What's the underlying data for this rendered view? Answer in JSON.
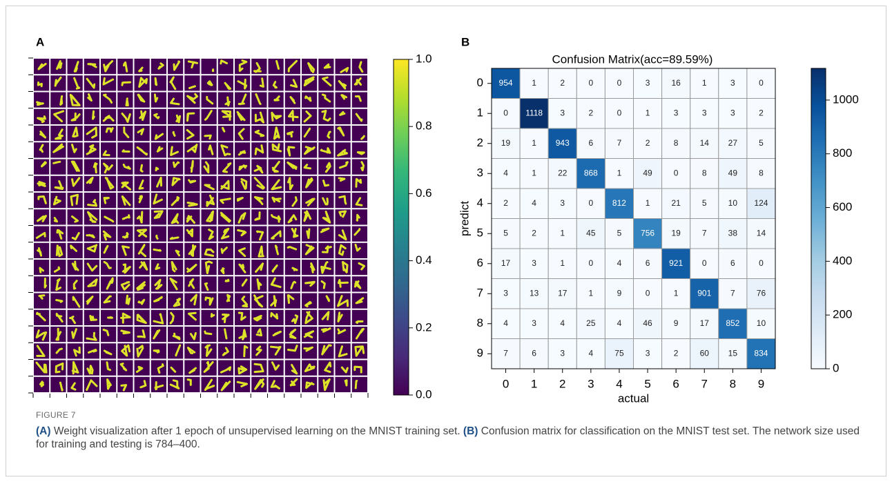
{
  "chart_data": [
    {
      "type": "image",
      "panel_label": "A",
      "colormap": "viridis",
      "zlim": [
        0,
        1
      ],
      "zticks": [
        {
          "value": 0,
          "label": "0.0"
        },
        0.2,
        0.4,
        0.6,
        0.8,
        {
          "value": 1,
          "label": "1.0"
        }
      ]
    },
    {
      "type": "heatmap",
      "panel_label": "B",
      "title": "Confusion Matrix(acc=89.59%)",
      "x_label": "actual",
      "y_label": "predict",
      "x_categories": [
        "0",
        "1",
        "2",
        "3",
        "4",
        "5",
        "6",
        "7",
        "8",
        "9"
      ],
      "y_categories": [
        "0",
        "1",
        "2",
        "3",
        "4",
        "5",
        "6",
        "7",
        "8",
        "9"
      ],
      "colormap": "Blues",
      "zlim": [
        0,
        1118
      ],
      "zticks": [
        0,
        200,
        400,
        600,
        800,
        1000
      ],
      "matrix": [
        [
          954,
          1,
          2,
          0,
          0,
          3,
          16,
          1,
          3,
          0
        ],
        [
          0,
          1118,
          3,
          2,
          0,
          1,
          3,
          3,
          3,
          2
        ],
        [
          19,
          1,
          943,
          6,
          7,
          2,
          8,
          14,
          27,
          5
        ],
        [
          4,
          1,
          22,
          868,
          1,
          49,
          0,
          8,
          49,
          8
        ],
        [
          2,
          4,
          3,
          0,
          812,
          1,
          21,
          5,
          10,
          124
        ],
        [
          5,
          2,
          1,
          45,
          5,
          756,
          19,
          7,
          38,
          14
        ],
        [
          17,
          3,
          1,
          0,
          4,
          6,
          921,
          0,
          6,
          0
        ],
        [
          3,
          13,
          17,
          1,
          9,
          0,
          1,
          901,
          7,
          76
        ],
        [
          4,
          3,
          4,
          25,
          4,
          46,
          9,
          17,
          852,
          10
        ],
        [
          7,
          6,
          3,
          4,
          75,
          3,
          2,
          60,
          15,
          834
        ]
      ]
    }
  ],
  "caption": {
    "label": "FIGURE 7",
    "parts": [
      {
        "tag": "(A)",
        "text": "Weight visualization after 1 epoch of unsupervised learning on the MNIST training set."
      },
      {
        "tag": "(B)",
        "text": "Confusion matrix for classification on the MNIST test set. The network size used for training and testing is 784–400."
      }
    ]
  }
}
